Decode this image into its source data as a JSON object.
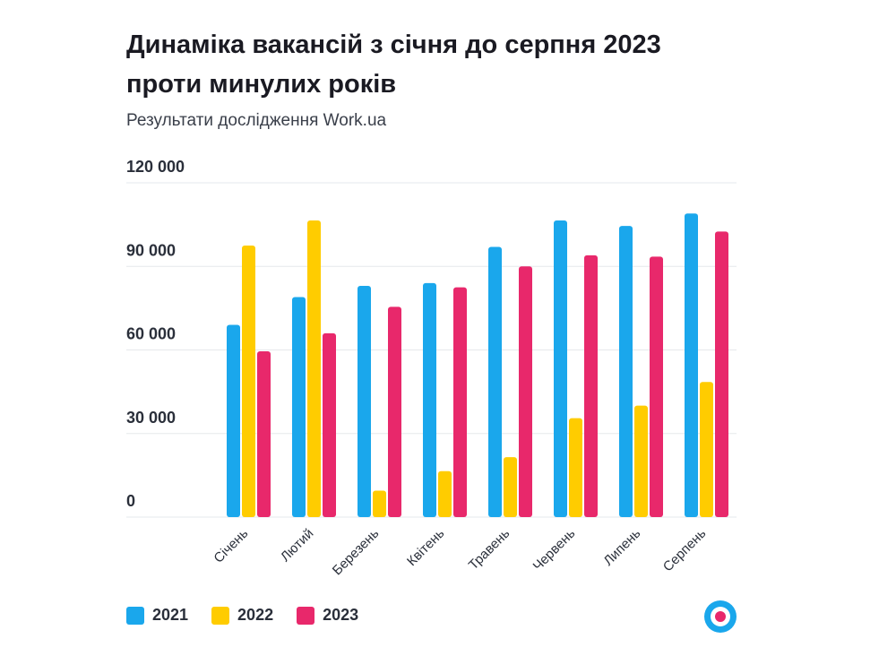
{
  "header": {
    "title_line1": "Динаміка вакансій з січня до серпня 2023",
    "title_line2": "проти минулих років",
    "subtitle": "Результати дослідження Work.ua"
  },
  "colors": {
    "2021": "#1aa7ec",
    "2022": "#ffcc00",
    "2023": "#e8286b",
    "grid": "#e6e8ec",
    "tick_text": "#2a2f3a",
    "logo_ring": "#1aa7ec",
    "logo_dot": "#e8286b"
  },
  "logo": {
    "name": "work-ua-logo-icon"
  },
  "chart_data": {
    "type": "bar",
    "categories": [
      "Січень",
      "Лютий",
      "Березень",
      "Квітень",
      "Травень",
      "Червень",
      "Липень",
      "Серпень"
    ],
    "series": [
      {
        "name": "2021",
        "values": [
          69000,
          79000,
          83000,
          84000,
          97000,
          106500,
          104500,
          109000
        ]
      },
      {
        "name": "2022",
        "values": [
          97500,
          106500,
          9500,
          16500,
          21500,
          35500,
          40000,
          48500
        ]
      },
      {
        "name": "2023",
        "values": [
          59500,
          66000,
          75500,
          82500,
          90000,
          94000,
          93500,
          102500
        ]
      }
    ],
    "yticks": [
      0,
      30000,
      60000,
      90000,
      120000
    ],
    "ytick_labels": [
      "0",
      "30 000",
      "60 000",
      "90 000",
      "120 000"
    ],
    "ylim": [
      0,
      120000
    ],
    "grid": true,
    "legend": "bottom-left",
    "xlabel": "",
    "ylabel": ""
  }
}
